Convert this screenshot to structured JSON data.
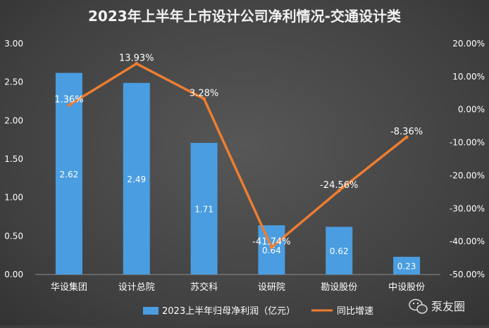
{
  "chart_data": {
    "type": "bar+line",
    "title": "2023年上半年上市设计公司净利情况-交通设计类",
    "categories": [
      "华设集团",
      "设计总院",
      "苏交科",
      "设研院",
      "勘设股份",
      "中设股份"
    ],
    "series": [
      {
        "name": "2023上半年归母净利润（亿元）",
        "type": "bar",
        "axis": "left",
        "values": [
          2.62,
          2.49,
          1.71,
          0.64,
          0.62,
          0.23
        ],
        "labels": [
          "2.62",
          "2.49",
          "1.71",
          "0.64",
          "0.62",
          "0.23"
        ]
      },
      {
        "name": "同比增速",
        "type": "line",
        "axis": "right",
        "values": [
          1.36,
          13.93,
          3.28,
          -41.74,
          -24.56,
          -8.36
        ],
        "labels": [
          "1.36%",
          "13.93%",
          "3.28%",
          "-41.74%",
          "-24.56%",
          "-8.36%"
        ]
      }
    ],
    "left_axis": {
      "ylim": [
        0,
        3
      ],
      "ticks": [
        "0.00",
        "0.50",
        "1.00",
        "1.50",
        "2.00",
        "2.50",
        "3.00"
      ]
    },
    "right_axis": {
      "ylim": [
        -50,
        20
      ],
      "ticks": [
        "20.00%",
        "10.00%",
        "0.00%",
        "-10.00%",
        "-20.00%",
        "-30.00%",
        "-40.00%",
        "-50.00%"
      ]
    },
    "legend_position": "bottom",
    "colors": {
      "bar": "#4a9de0",
      "line": "#ed7d31",
      "text": "#ffffff",
      "title": "#f2f2f2"
    }
  },
  "watermark": {
    "text": "泵友圈"
  }
}
